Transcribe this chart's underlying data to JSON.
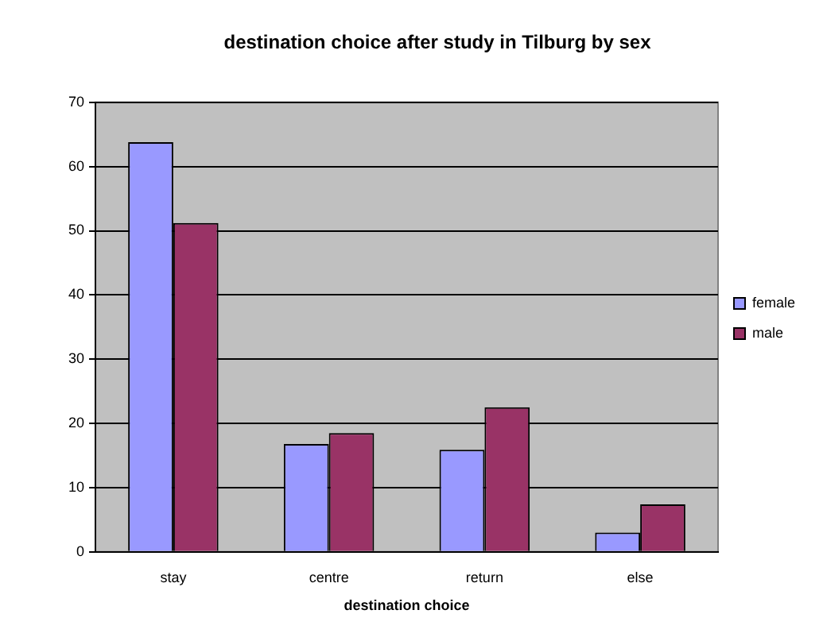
{
  "chart_data": {
    "type": "bar",
    "title": "destination choice after study in Tilburg by sex",
    "xlabel": "destination choice",
    "categories": [
      "stay",
      "centre",
      "return",
      "else"
    ],
    "series": [
      {
        "name": "female",
        "color": "#9999ff",
        "values": [
          63.8,
          16.8,
          15.9,
          3.0
        ]
      },
      {
        "name": "male",
        "color": "#993366",
        "values": [
          51.2,
          18.5,
          22.5,
          7.4
        ]
      }
    ],
    "ylim": [
      0,
      70
    ],
    "yticks": [
      0,
      10,
      20,
      30,
      40,
      50,
      60,
      70
    ],
    "grid": "y",
    "legend": "right"
  }
}
